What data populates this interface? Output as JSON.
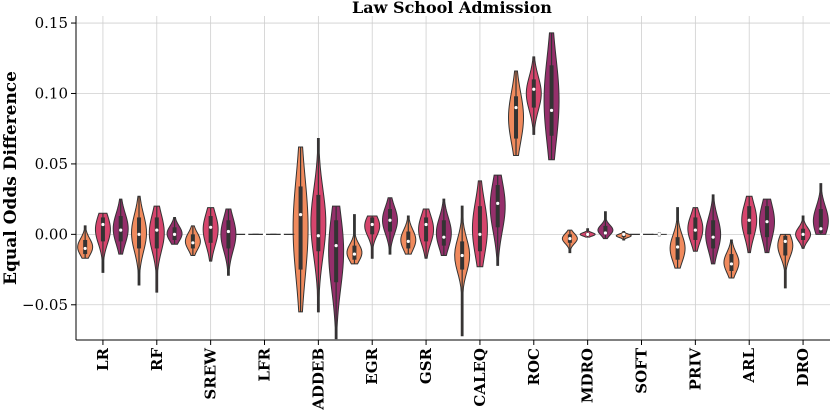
{
  "chart_data": {
    "type": "violin",
    "title": "Law School Admission",
    "xlabel": "",
    "ylabel": "Equal Odds Difference",
    "ylim": [
      -0.075,
      0.155
    ],
    "yticks": [
      -0.05,
      0.0,
      0.05,
      0.1,
      0.15
    ],
    "ytick_labels": [
      "−0.05",
      "0.00",
      "0.05",
      "0.10",
      "0.15"
    ],
    "grid": true,
    "categories": [
      "LR",
      "RF",
      "SREW",
      "LFR",
      "ADDEB",
      "EGR",
      "GSR",
      "CALEQ",
      "ROC",
      "MDRO",
      "SOFT",
      "PRIV",
      "ARL",
      "DRO"
    ],
    "series_colors": [
      "#f08a5d",
      "#d6456d",
      "#952f6b",
      "#3a2a3c"
    ],
    "series": [
      {
        "values": [
          {
            "min": -0.017,
            "q1": -0.014,
            "median": -0.01,
            "q3": -0.004,
            "max": 0.006
          },
          {
            "min": -0.036,
            "q1": -0.01,
            "median": 0.0,
            "q3": 0.012,
            "max": 0.027
          },
          {
            "min": -0.015,
            "q1": -0.01,
            "median": -0.006,
            "q3": 0.0,
            "max": 0.006
          },
          {
            "min": 0.0,
            "q1": 0.0,
            "median": 0.0,
            "q3": 0.0,
            "max": 0.0
          },
          {
            "min": -0.055,
            "q1": -0.025,
            "median": 0.014,
            "q3": 0.034,
            "max": 0.062
          },
          {
            "min": -0.021,
            "q1": -0.018,
            "median": -0.014,
            "q3": -0.008,
            "max": 0.014
          },
          {
            "min": -0.014,
            "q1": -0.01,
            "median": -0.005,
            "q3": 0.002,
            "max": 0.013
          },
          {
            "min": -0.072,
            "q1": -0.025,
            "median": -0.015,
            "q3": -0.005,
            "max": 0.02
          },
          {
            "min": 0.056,
            "q1": 0.068,
            "median": 0.09,
            "q3": 0.098,
            "max": 0.116
          },
          {
            "min": -0.013,
            "q1": -0.006,
            "median": -0.003,
            "q3": 0.0,
            "max": 0.003
          },
          {
            "min": -0.004,
            "q1": -0.002,
            "median": 0.0,
            "q3": 0.0,
            "max": 0.002
          },
          {
            "min": -0.024,
            "q1": -0.018,
            "median": -0.009,
            "q3": -0.002,
            "max": 0.019
          },
          {
            "min": -0.031,
            "q1": -0.026,
            "median": -0.021,
            "q3": -0.014,
            "max": -0.004
          },
          {
            "min": -0.038,
            "q1": -0.015,
            "median": -0.005,
            "q3": -0.001,
            "max": 0.0
          }
        ]
      },
      {
        "values": [
          {
            "min": -0.027,
            "q1": -0.005,
            "median": 0.007,
            "q3": 0.012,
            "max": 0.015
          },
          {
            "min": -0.041,
            "q1": -0.01,
            "median": 0.003,
            "q3": 0.012,
            "max": 0.02
          },
          {
            "min": -0.019,
            "q1": -0.006,
            "median": 0.005,
            "q3": 0.013,
            "max": 0.019
          },
          {
            "min": 0.0,
            "q1": 0.0,
            "median": 0.0,
            "q3": 0.0,
            "max": 0.0
          },
          {
            "min": -0.055,
            "q1": -0.012,
            "median": -0.001,
            "q3": 0.028,
            "max": 0.068
          },
          {
            "min": -0.017,
            "q1": 0.0,
            "median": 0.007,
            "q3": 0.012,
            "max": 0.013
          },
          {
            "min": -0.017,
            "q1": -0.005,
            "median": 0.007,
            "q3": 0.012,
            "max": 0.018
          },
          {
            "min": -0.023,
            "q1": -0.012,
            "median": 0.0,
            "q3": 0.02,
            "max": 0.038
          },
          {
            "min": 0.071,
            "q1": 0.09,
            "median": 0.103,
            "q3": 0.11,
            "max": 0.126
          },
          {
            "min": -0.002,
            "q1": -0.001,
            "median": 0.0,
            "q3": 0.001,
            "max": 0.004
          },
          {
            "min": 0.0,
            "q1": 0.0,
            "median": 0.0,
            "q3": 0.0,
            "max": 0.0
          },
          {
            "min": -0.012,
            "q1": -0.004,
            "median": 0.003,
            "q3": 0.012,
            "max": 0.019
          },
          {
            "min": -0.013,
            "q1": 0.0,
            "median": 0.01,
            "q3": 0.02,
            "max": 0.027
          },
          {
            "min": -0.01,
            "q1": -0.004,
            "median": 0.0,
            "q3": 0.004,
            "max": 0.013
          }
        ]
      },
      {
        "values": [
          {
            "min": -0.014,
            "q1": -0.005,
            "median": 0.003,
            "q3": 0.013,
            "max": 0.025
          },
          {
            "min": -0.007,
            "q1": -0.004,
            "median": 0.0,
            "q3": 0.005,
            "max": 0.012
          },
          {
            "min": -0.029,
            "q1": -0.01,
            "median": 0.002,
            "q3": 0.01,
            "max": 0.018
          },
          {
            "min": 0.0,
            "q1": 0.0,
            "median": 0.0,
            "q3": 0.0,
            "max": 0.0
          },
          {
            "min": -0.074,
            "q1": -0.034,
            "median": -0.008,
            "q3": 0.01,
            "max": 0.02
          },
          {
            "min": -0.014,
            "q1": 0.002,
            "median": 0.01,
            "q3": 0.018,
            "max": 0.026
          },
          {
            "min": -0.015,
            "q1": -0.008,
            "median": -0.002,
            "q3": 0.01,
            "max": 0.025
          },
          {
            "min": -0.022,
            "q1": 0.005,
            "median": 0.022,
            "q3": 0.035,
            "max": 0.042
          },
          {
            "min": 0.053,
            "q1": 0.07,
            "median": 0.088,
            "q3": 0.12,
            "max": 0.143
          },
          {
            "min": -0.003,
            "q1": 0.0,
            "median": 0.001,
            "q3": 0.006,
            "max": 0.016
          },
          {
            "min": -0.001,
            "q1": 0.0,
            "median": 0.0,
            "q3": 0.0,
            "max": 0.001
          },
          {
            "min": -0.021,
            "q1": -0.01,
            "median": -0.002,
            "q3": 0.01,
            "max": 0.028
          },
          {
            "min": -0.013,
            "q1": -0.002,
            "median": 0.009,
            "q3": 0.02,
            "max": 0.025
          },
          {
            "min": 0.0,
            "q1": 0.001,
            "median": 0.004,
            "q3": 0.018,
            "max": 0.036
          }
        ]
      }
    ]
  }
}
